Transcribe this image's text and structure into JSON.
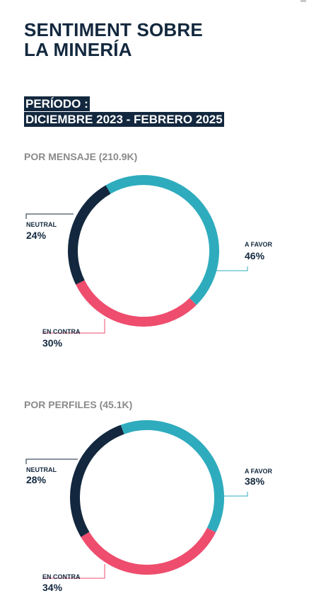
{
  "title_lines": [
    "SENTIMENT SOBRE",
    "LA MINERÍA"
  ],
  "period_lines": [
    "PERÍODO :",
    "DICIEMBRE 2023 - FEBRERO 2025"
  ],
  "colors": {
    "a_favor": "#2eacbd",
    "en_contra": "#ee4d6d",
    "neutral": "#13283e"
  },
  "chart_data": [
    {
      "type": "pie",
      "title": "POR MENSAJE (210.9K)",
      "categories": [
        "A FAVOR",
        "EN CONTRA",
        "NEUTRAL"
      ],
      "values": [
        46,
        30,
        24
      ],
      "value_labels": [
        "46%",
        "30%",
        "24%"
      ]
    },
    {
      "type": "pie",
      "title": "POR PERFILES (45.1K)",
      "categories": [
        "A FAVOR",
        "EN CONTRA",
        "NEUTRAL"
      ],
      "values": [
        38,
        34,
        28
      ],
      "value_labels": [
        "38%",
        "34%",
        "28%"
      ]
    }
  ]
}
